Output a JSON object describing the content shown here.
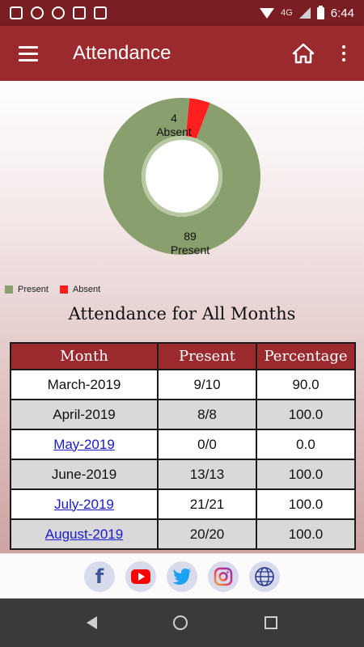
{
  "status_bar": {
    "time": "6:44",
    "network": "4G",
    "icons": [
      "sim-icon",
      "loading-icon",
      "motorola-icon",
      "screen-icon",
      "call-icon",
      "wifi-icon",
      "signal-icon",
      "battery-icon"
    ]
  },
  "app_bar": {
    "title": "Attendance",
    "icons": [
      "menu-icon",
      "home-icon",
      "more-icon"
    ]
  },
  "chart_data": {
    "type": "pie",
    "categories": [
      "Present",
      "Absent"
    ],
    "values": [
      89,
      4
    ],
    "colors": [
      "#8a9f6e",
      "#ff1f1f"
    ],
    "labels": [
      {
        "value": "89",
        "category": "Present"
      },
      {
        "value": "4",
        "category": "Absent"
      }
    ],
    "legend": "bottom-left"
  },
  "legend": {
    "present": "Present",
    "absent": "Absent"
  },
  "section_title": "Attendance for All Months",
  "table": {
    "headers": [
      "Month",
      "Present",
      "Percentage"
    ],
    "rows": [
      {
        "month": "March-2019",
        "present": "9/10",
        "percentage": "90.0",
        "link": false
      },
      {
        "month": "April-2019",
        "present": "8/8",
        "percentage": "100.0",
        "link": false
      },
      {
        "month": "May-2019",
        "present": "0/0",
        "percentage": "0.0",
        "link": true
      },
      {
        "month": "June-2019",
        "present": "13/13",
        "percentage": "100.0",
        "link": false
      },
      {
        "month": "July-2019",
        "present": "21/21",
        "percentage": "100.0",
        "link": true
      },
      {
        "month": "August-2019",
        "present": "20/20",
        "percentage": "100.0",
        "link": true
      }
    ]
  },
  "footer": {
    "icons": [
      "facebook-icon",
      "youtube-icon",
      "twitter-icon",
      "instagram-icon",
      "globe-icon"
    ],
    "facebook_glyph": "f"
  },
  "colors": {
    "accent": "#9a2a2e",
    "status_bar": "#7a1d22",
    "present": "#8a9f6e",
    "absent": "#ff1f1f",
    "link": "#1a1acc"
  }
}
